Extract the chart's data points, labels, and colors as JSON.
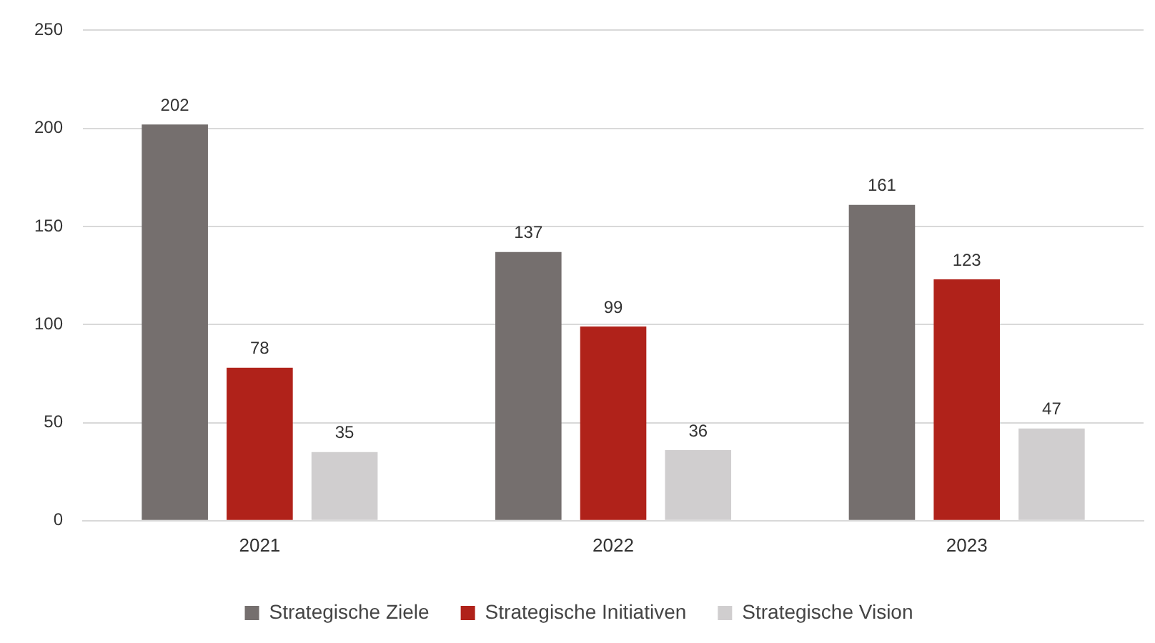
{
  "chart_data": {
    "type": "bar",
    "categories": [
      "2021",
      "2022",
      "2023"
    ],
    "series": [
      {
        "name": "Strategische Ziele",
        "color": "#756f6e",
        "values": [
          202,
          137,
          161
        ]
      },
      {
        "name": "Strategische Initiativen",
        "color": "#b0221a",
        "values": [
          78,
          99,
          123
        ]
      },
      {
        "name": "Strategische Vision",
        "color": "#d0cecf",
        "values": [
          35,
          36,
          47
        ]
      }
    ],
    "ylim": [
      0,
      250
    ],
    "yticks": [
      0,
      50,
      100,
      150,
      200,
      250
    ],
    "grid": "y",
    "legend": "bottom",
    "data_labels": true
  }
}
